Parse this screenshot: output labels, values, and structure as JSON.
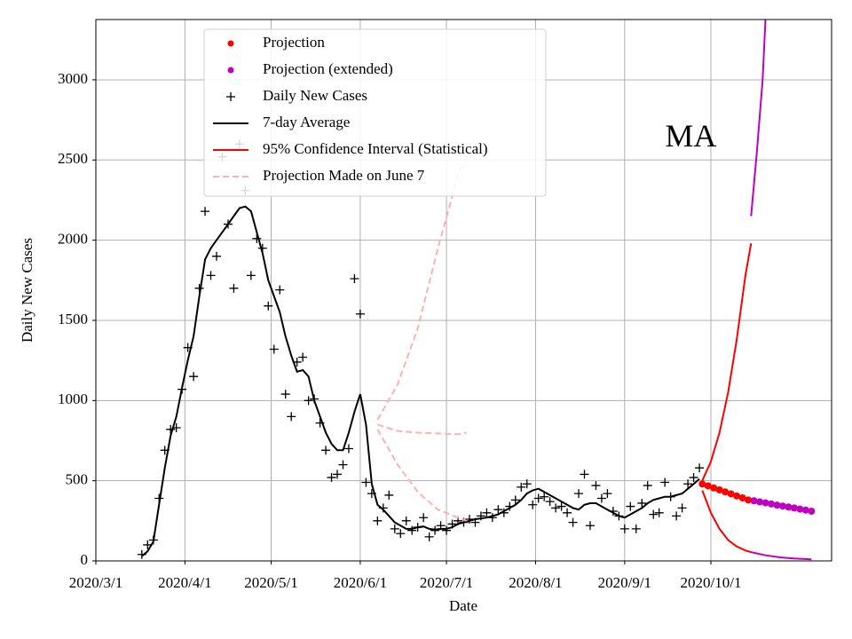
{
  "chart_data": {
    "type": "line",
    "xlabel": "Date",
    "ylabel": "Daily New Cases",
    "xlim": [
      "2020/3/1",
      "2020/11/12"
    ],
    "xticks": [
      "2020/3/1",
      "2020/4/1",
      "2020/5/1",
      "2020/6/1",
      "2020/7/1",
      "2020/8/1",
      "2020/9/1",
      "2020/10/1"
    ],
    "ylim": [
      0,
      3376
    ],
    "yticks": [
      0,
      500,
      1000,
      1500,
      2000,
      2500,
      3000
    ],
    "grid": true,
    "legend": "upper center",
    "annotations": [
      {
        "text": "MA",
        "x": "2020/9/24",
        "y": 2630
      }
    ],
    "series": [
      {
        "name": "Projection",
        "color": "#ff0000",
        "style": "dot",
        "x": [
          "2020/9/28",
          "2020/9/30",
          "2020/10/2",
          "2020/10/4",
          "2020/10/6",
          "2020/10/8",
          "2020/10/10",
          "2020/10/12",
          "2020/10/14"
        ],
        "values": [
          480,
          468,
          455,
          443,
          430,
          418,
          405,
          393,
          380
        ]
      },
      {
        "name": "Projection (extended)",
        "color": "#bf00bf",
        "style": "dot",
        "x": [
          "2020/10/16",
          "2020/10/18",
          "2020/10/20",
          "2020/10/22",
          "2020/10/24",
          "2020/10/26",
          "2020/10/28",
          "2020/10/30",
          "2020/11/1",
          "2020/11/3",
          "2020/11/5"
        ],
        "values": [
          375,
          368,
          362,
          355,
          348,
          342,
          336,
          330,
          323,
          317,
          310
        ]
      },
      {
        "name": "Daily New Cases",
        "color": "#000000",
        "style": "plus",
        "x": [
          "2020/3/17",
          "2020/3/19",
          "2020/3/21",
          "2020/3/23",
          "2020/3/25",
          "2020/3/27",
          "2020/3/29",
          "2020/3/31",
          "2020/4/2",
          "2020/4/4",
          "2020/4/6",
          "2020/4/8",
          "2020/4/10",
          "2020/4/12",
          "2020/4/14",
          "2020/4/16",
          "2020/4/18",
          "2020/4/20",
          "2020/4/22",
          "2020/4/24",
          "2020/4/26",
          "2020/4/28",
          "2020/4/30",
          "2020/5/2",
          "2020/5/4",
          "2020/5/6",
          "2020/5/8",
          "2020/5/10",
          "2020/5/12",
          "2020/5/14",
          "2020/5/16",
          "2020/5/18",
          "2020/5/20",
          "2020/5/22",
          "2020/5/24",
          "2020/5/26",
          "2020/5/28",
          "2020/5/30",
          "2020/6/1",
          "2020/6/3",
          "2020/6/5",
          "2020/6/7",
          "2020/6/9",
          "2020/6/11",
          "2020/6/13",
          "2020/6/15",
          "2020/6/17",
          "2020/6/19",
          "2020/6/21",
          "2020/6/23",
          "2020/6/25",
          "2020/6/27",
          "2020/6/29",
          "2020/7/1",
          "2020/7/3",
          "2020/7/5",
          "2020/7/7",
          "2020/7/9",
          "2020/7/11",
          "2020/7/13",
          "2020/7/15",
          "2020/7/17",
          "2020/7/19",
          "2020/7/21",
          "2020/7/23",
          "2020/7/25",
          "2020/7/27",
          "2020/7/29",
          "2020/7/31",
          "2020/8/2",
          "2020/8/4",
          "2020/8/6",
          "2020/8/8",
          "2020/8/10",
          "2020/8/12",
          "2020/8/14",
          "2020/8/16",
          "2020/8/18",
          "2020/8/20",
          "2020/8/22",
          "2020/8/24",
          "2020/8/26",
          "2020/8/28",
          "2020/8/30",
          "2020/9/1",
          "2020/9/3",
          "2020/9/5",
          "2020/9/7",
          "2020/9/9",
          "2020/9/11",
          "2020/9/13",
          "2020/9/15",
          "2020/9/17",
          "2020/9/19",
          "2020/9/21",
          "2020/9/23",
          "2020/9/25",
          "2020/9/27"
        ],
        "values": [
          40,
          100,
          130,
          390,
          690,
          820,
          830,
          1070,
          1330,
          1150,
          1700,
          2180,
          1780,
          1900,
          2520,
          2100,
          1700,
          2600,
          2310,
          1780,
          2010,
          1950,
          1590,
          1320,
          1690,
          1040,
          900,
          1240,
          1270,
          1000,
          1010,
          860,
          690,
          520,
          540,
          600,
          700,
          1760,
          1540,
          490,
          420,
          250,
          330,
          410,
          200,
          170,
          250,
          190,
          210,
          270,
          150,
          190,
          220,
          190,
          230,
          250,
          240,
          260,
          240,
          280,
          300,
          270,
          320,
          300,
          340,
          380,
          460,
          480,
          350,
          390,
          400,
          370,
          330,
          340,
          300,
          240,
          420,
          540,
          220,
          470,
          390,
          420,
          310,
          280,
          200,
          340,
          200,
          360,
          470,
          290,
          300,
          490,
          400,
          280,
          330,
          480,
          520,
          580
        ]
      },
      {
        "name": "7-day Average",
        "color": "#000000",
        "style": "line",
        "x": [
          "2020/3/17",
          "2020/3/19",
          "2020/3/21",
          "2020/3/23",
          "2020/3/25",
          "2020/3/27",
          "2020/3/29",
          "2020/3/31",
          "2020/4/2",
          "2020/4/4",
          "2020/4/6",
          "2020/4/8",
          "2020/4/10",
          "2020/4/12",
          "2020/4/14",
          "2020/4/16",
          "2020/4/18",
          "2020/4/20",
          "2020/4/22",
          "2020/4/24",
          "2020/4/26",
          "2020/4/28",
          "2020/4/30",
          "2020/5/2",
          "2020/5/4",
          "2020/5/6",
          "2020/5/8",
          "2020/5/10",
          "2020/5/12",
          "2020/5/14",
          "2020/5/16",
          "2020/5/18",
          "2020/5/20",
          "2020/5/22",
          "2020/5/24",
          "2020/5/26",
          "2020/5/28",
          "2020/5/30",
          "2020/6/1",
          "2020/6/3",
          "2020/6/5",
          "2020/6/7",
          "2020/6/9",
          "2020/6/11",
          "2020/6/13",
          "2020/6/15",
          "2020/6/17",
          "2020/6/19",
          "2020/6/21",
          "2020/6/23",
          "2020/6/25",
          "2020/6/27",
          "2020/6/29",
          "2020/7/1",
          "2020/7/3",
          "2020/7/5",
          "2020/7/7",
          "2020/7/9",
          "2020/7/11",
          "2020/7/13",
          "2020/7/15",
          "2020/7/17",
          "2020/7/19",
          "2020/7/21",
          "2020/7/23",
          "2020/7/25",
          "2020/7/27",
          "2020/7/29",
          "2020/7/31",
          "2020/8/2",
          "2020/8/4",
          "2020/8/6",
          "2020/8/8",
          "2020/8/10",
          "2020/8/12",
          "2020/8/14",
          "2020/8/16",
          "2020/8/18",
          "2020/8/20",
          "2020/8/22",
          "2020/8/24",
          "2020/8/26",
          "2020/8/28",
          "2020/8/30",
          "2020/9/1",
          "2020/9/3",
          "2020/9/5",
          "2020/9/7",
          "2020/9/9",
          "2020/9/11",
          "2020/9/13",
          "2020/9/15",
          "2020/9/17",
          "2020/9/19",
          "2020/9/21",
          "2020/9/23",
          "2020/9/25",
          "2020/9/27"
        ],
        "values": [
          30,
          60,
          120,
          350,
          580,
          780,
          900,
          1080,
          1250,
          1400,
          1650,
          1880,
          1950,
          2000,
          2050,
          2100,
          2150,
          2200,
          2210,
          2180,
          2050,
          1920,
          1750,
          1650,
          1550,
          1400,
          1280,
          1180,
          1190,
          1150,
          1000,
          900,
          800,
          730,
          690,
          690,
          800,
          930,
          1040,
          850,
          480,
          350,
          320,
          280,
          240,
          220,
          200,
          200,
          210,
          215,
          200,
          195,
          200,
          200,
          210,
          230,
          240,
          250,
          260,
          265,
          270,
          280,
          290,
          310,
          330,
          350,
          380,
          420,
          440,
          450,
          430,
          410,
          390,
          370,
          350,
          330,
          320,
          350,
          360,
          360,
          340,
          320,
          300,
          280,
          270,
          290,
          310,
          330,
          360,
          380,
          390,
          400,
          400,
          410,
          420,
          450,
          480,
          510
        ]
      },
      {
        "name": "95% Confidence Interval (Statistical)",
        "color": "#ff0000",
        "style": "band",
        "x": [
          "2020/9/28",
          "2020/10/1",
          "2020/10/4",
          "2020/10/7",
          "2020/10/10",
          "2020/10/13",
          "2020/10/15"
        ],
        "upper": [
          500,
          620,
          800,
          1050,
          1380,
          1780,
          1980
        ],
        "lower": [
          440,
          300,
          200,
          130,
          90,
          65,
          55
        ]
      },
      {
        "name": "Projection Made on June 7",
        "color": "#ffb0b0",
        "style": "dashed",
        "x": [
          "2020/6/7",
          "2020/6/14",
          "2020/6/21",
          "2020/6/28",
          "2020/7/5",
          "2020/7/8"
        ],
        "upper": [
          880,
          1100,
          1450,
          1950,
          2400,
          2520
        ],
        "values": [
          850,
          810,
          800,
          795,
          790,
          800
        ],
        "lower": [
          820,
          600,
          430,
          320,
          270,
          250
        ]
      },
      {
        "color": "#bf00bf",
        "style": "line",
        "x": [
          "2020/10/15",
          "2020/10/17",
          "2020/10/19",
          "2020/10/20"
        ],
        "values": [
          2150,
          2550,
          3000,
          3376
        ]
      },
      {
        "color": "#bf00bf",
        "style": "line",
        "x": [
          "2020/10/15",
          "2020/10/20",
          "2020/10/25",
          "2020/10/30",
          "2020/11/5"
        ],
        "values": [
          55,
          35,
          22,
          15,
          10
        ]
      }
    ]
  }
}
